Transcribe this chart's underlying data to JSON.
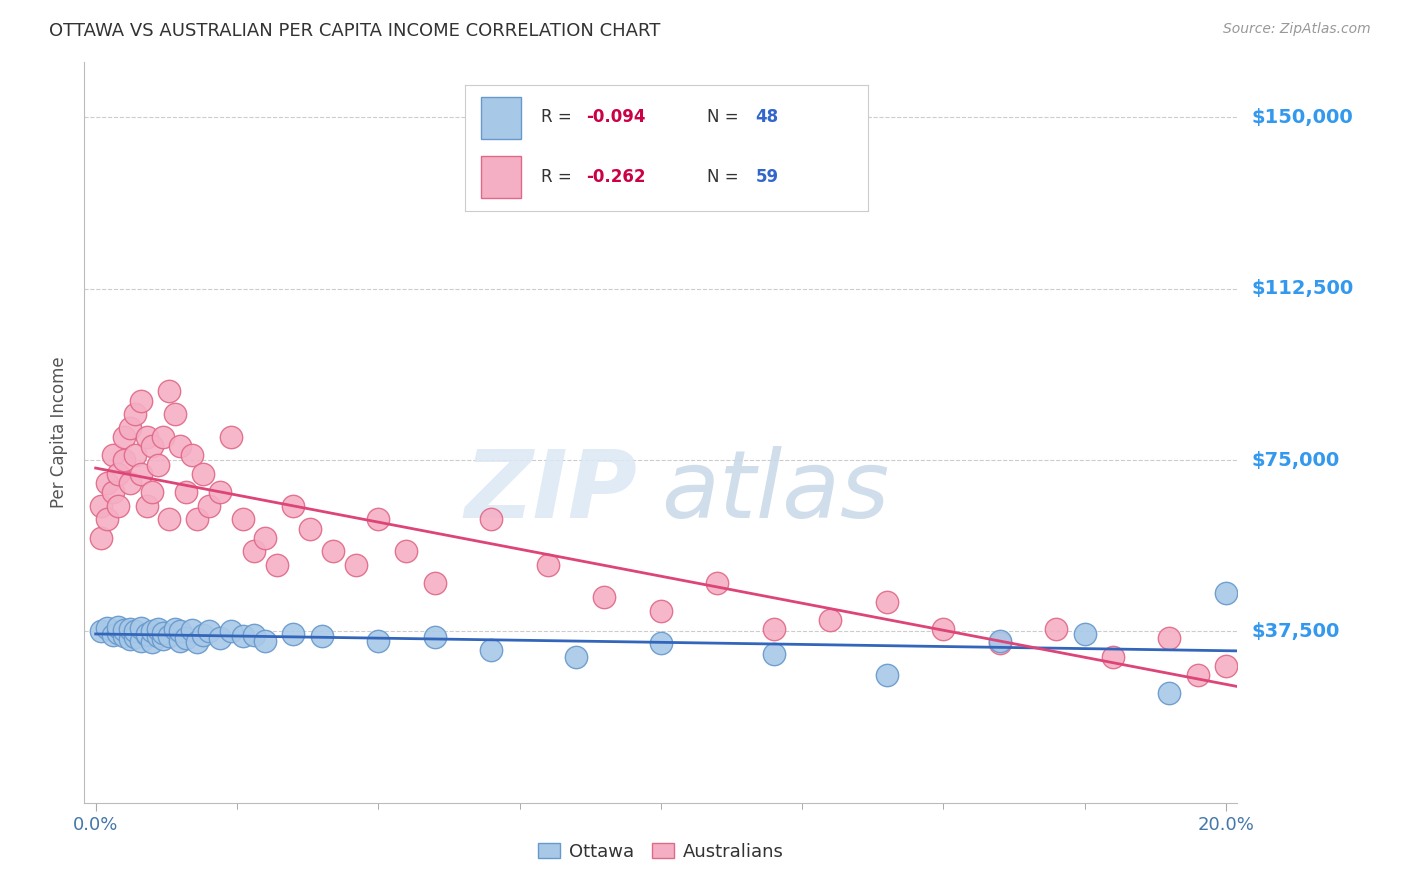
{
  "title": "OTTAWA VS AUSTRALIAN PER CAPITA INCOME CORRELATION CHART",
  "source": "Source: ZipAtlas.com",
  "ylabel": "Per Capita Income",
  "ytick_labels": [
    "$37,500",
    "$75,000",
    "$112,500",
    "$150,000"
  ],
  "ytick_vals": [
    37500,
    75000,
    112500,
    150000
  ],
  "ylim": [
    0,
    162000
  ],
  "xlim": [
    -0.002,
    0.202
  ],
  "xtick_vals_minor": [
    0.025,
    0.05,
    0.075,
    0.1,
    0.125,
    0.15,
    0.175
  ],
  "ottawa_color": "#a8c8e8",
  "ottawa_edge_color": "#6699cc",
  "australians_color": "#f5afc5",
  "australians_edge_color": "#e06888",
  "trend_ottawa_color": "#3366bb",
  "trend_australians_color": "#dd4477",
  "legend_label_ottawa": "Ottawa",
  "legend_label_australians": "Australians",
  "legend_r_ottawa": "R = -0.094",
  "legend_n_ottawa": "N = 48",
  "legend_r_australians": "R = -0.262",
  "legend_n_australians": "N = 59",
  "watermark_zip": "ZIP",
  "watermark_atlas": "atlas",
  "background_color": "#ffffff",
  "grid_color": "#cccccc",
  "title_color": "#333333",
  "axis_label_color": "#555555",
  "ytick_color": "#3399ee",
  "r_color": "#cc0044",
  "n_color": "#3366cc",
  "legend_text_color": "#333333",
  "ottawa_x": [
    0.001,
    0.002,
    0.003,
    0.004,
    0.004,
    0.005,
    0.005,
    0.006,
    0.006,
    0.007,
    0.007,
    0.008,
    0.008,
    0.009,
    0.009,
    0.01,
    0.01,
    0.011,
    0.011,
    0.012,
    0.012,
    0.013,
    0.014,
    0.015,
    0.015,
    0.016,
    0.017,
    0.018,
    0.019,
    0.02,
    0.022,
    0.024,
    0.026,
    0.028,
    0.03,
    0.035,
    0.04,
    0.05,
    0.06,
    0.07,
    0.085,
    0.1,
    0.12,
    0.14,
    0.16,
    0.175,
    0.19,
    0.2
  ],
  "ottawa_y": [
    37500,
    38200,
    36800,
    37200,
    38500,
    36500,
    37800,
    35800,
    38000,
    36200,
    37500,
    35500,
    38200,
    36800,
    37000,
    35200,
    37500,
    36500,
    38000,
    35800,
    37200,
    36500,
    38000,
    35500,
    37500,
    36000,
    37800,
    35200,
    36800,
    37500,
    36000,
    37500,
    36500,
    36800,
    35500,
    37000,
    36500,
    35500,
    36200,
    33500,
    32000,
    35000,
    32500,
    28000,
    35500,
    37000,
    24000,
    46000
  ],
  "australians_x": [
    0.001,
    0.001,
    0.002,
    0.002,
    0.003,
    0.003,
    0.004,
    0.004,
    0.005,
    0.005,
    0.006,
    0.006,
    0.007,
    0.007,
    0.008,
    0.008,
    0.009,
    0.009,
    0.01,
    0.01,
    0.011,
    0.012,
    0.013,
    0.013,
    0.014,
    0.015,
    0.016,
    0.017,
    0.018,
    0.019,
    0.02,
    0.022,
    0.024,
    0.026,
    0.028,
    0.03,
    0.032,
    0.035,
    0.038,
    0.042,
    0.046,
    0.05,
    0.055,
    0.06,
    0.07,
    0.08,
    0.09,
    0.1,
    0.11,
    0.12,
    0.13,
    0.14,
    0.15,
    0.16,
    0.17,
    0.18,
    0.19,
    0.195,
    0.2
  ],
  "australians_y": [
    58000,
    65000,
    62000,
    70000,
    68000,
    76000,
    72000,
    65000,
    75000,
    80000,
    82000,
    70000,
    76000,
    85000,
    88000,
    72000,
    65000,
    80000,
    78000,
    68000,
    74000,
    80000,
    62000,
    90000,
    85000,
    78000,
    68000,
    76000,
    62000,
    72000,
    65000,
    68000,
    80000,
    62000,
    55000,
    58000,
    52000,
    65000,
    60000,
    55000,
    52000,
    62000,
    55000,
    48000,
    62000,
    52000,
    45000,
    42000,
    48000,
    38000,
    40000,
    44000,
    38000,
    35000,
    38000,
    32000,
    36000,
    28000,
    30000
  ]
}
